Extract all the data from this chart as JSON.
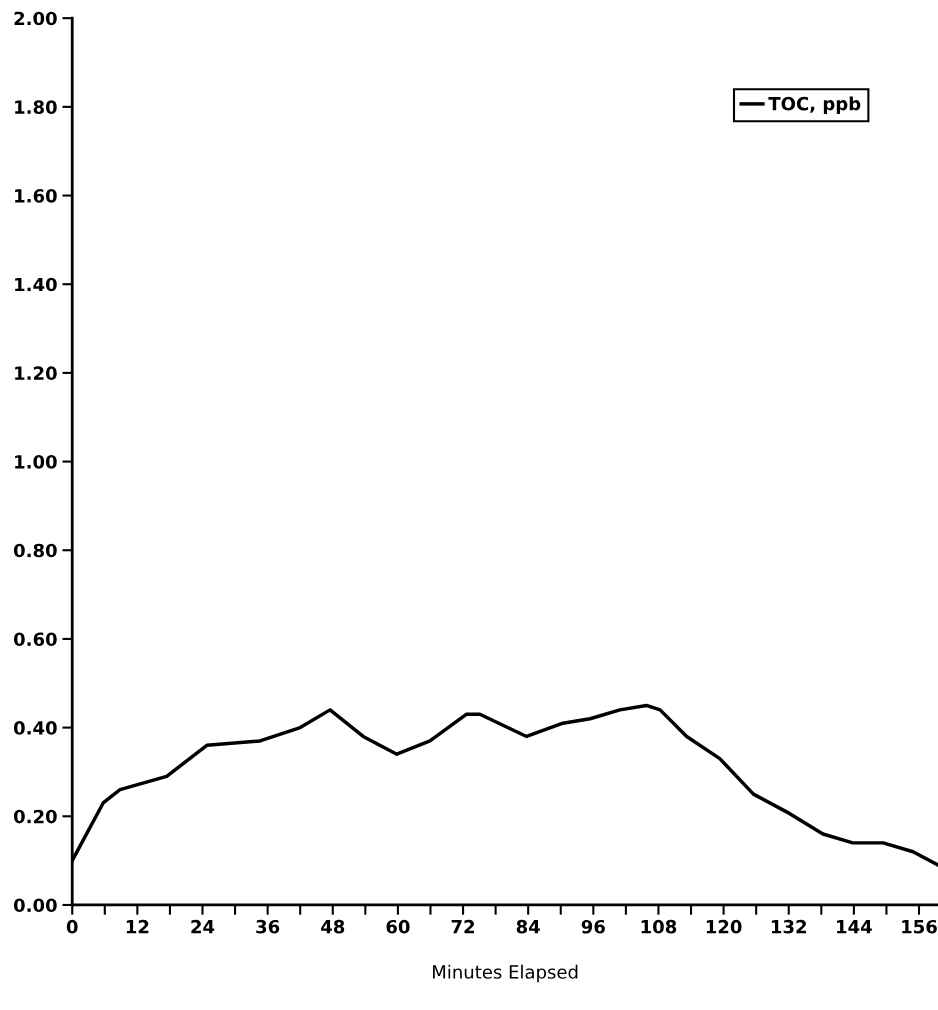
{
  "chart_data": {
    "type": "line",
    "xlabel": "Minutes Elapsed",
    "x": [
      0,
      5.7,
      8.8,
      17.4,
      24.8,
      34.6,
      42,
      47.5,
      53.6,
      59.8,
      65.9,
      72.6,
      75.1,
      83.7,
      90.4,
      95.4,
      100.9,
      105.8,
      108.3,
      113.2,
      119.3,
      125.5,
      131.6,
      138.3,
      143.8,
      149.4,
      154.9,
      159.5
    ],
    "series": [
      {
        "name": "TOC, ppb",
        "color": "#000000",
        "values": [
          0.1,
          0.23,
          0.26,
          0.29,
          0.36,
          0.37,
          0.4,
          0.44,
          0.38,
          0.34,
          0.37,
          0.43,
          0.43,
          0.38,
          0.41,
          0.42,
          0.44,
          0.45,
          0.44,
          0.38,
          0.33,
          0.25,
          0.21,
          0.16,
          0.14,
          0.14,
          0.12,
          0.09
        ]
      }
    ],
    "xlim": [
      0,
      159.5
    ],
    "ylim": [
      0,
      2.0
    ],
    "xticks": [
      0,
      {
        "value": 6,
        "label": null
      },
      12,
      {
        "value": 18,
        "label": null
      },
      24,
      {
        "value": 30,
        "label": null
      },
      36,
      {
        "value": 42,
        "label": null
      },
      48,
      {
        "value": 54,
        "label": null
      },
      60,
      {
        "value": 66,
        "label": null
      },
      72,
      {
        "value": 78,
        "label": null
      },
      84,
      {
        "value": 90,
        "label": null
      },
      96,
      {
        "value": 102,
        "label": null
      },
      108,
      {
        "value": 114,
        "label": null
      },
      120,
      {
        "value": 126,
        "label": null
      },
      132,
      {
        "value": 138,
        "label": null
      },
      144,
      {
        "value": 150,
        "label": null
      },
      156
    ],
    "yticks": [
      {
        "value": 0,
        "label": "0.00"
      },
      {
        "value": 0.2,
        "label": "0.20"
      },
      {
        "value": 0.4,
        "label": "0.40"
      },
      {
        "value": 0.6,
        "label": "0.60"
      },
      {
        "value": 0.8,
        "label": "0.80"
      },
      {
        "value": 1.0,
        "label": "1.00"
      },
      {
        "value": 1.2,
        "label": "1.20"
      },
      {
        "value": 1.4,
        "label": "1.40"
      },
      {
        "value": 1.6,
        "label": "1.60"
      },
      {
        "value": 1.8,
        "label": "1.80"
      },
      {
        "value": 2.0,
        "label": "2.00"
      }
    ],
    "legend": "top right",
    "grid": false,
    "marker": "none",
    "line_style": "solid"
  }
}
